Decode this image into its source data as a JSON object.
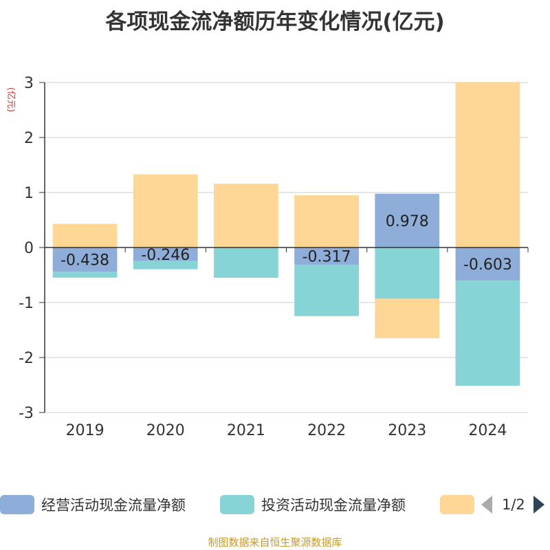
{
  "title": "各项现金流净额历年变化情况(亿元)",
  "footer": "制图数据来自恒生聚源数据库",
  "chart_data": {
    "type": "bar",
    "stacked": true,
    "categories": [
      "2019",
      "2020",
      "2021",
      "2022",
      "2023",
      "2024"
    ],
    "ylabel": "(亿元)",
    "ylim": [
      -3,
      3
    ],
    "yticks": [
      3,
      2,
      1,
      0,
      -1,
      -2,
      -3
    ],
    "grid": true,
    "series": [
      {
        "name": "经营活动现金流量净额",
        "color": "#8eadd9",
        "values": [
          -0.438,
          -0.246,
          0.01,
          -0.317,
          0.978,
          -0.603
        ],
        "labels": [
          "-0.438",
          "-0.246",
          "",
          "-0.317",
          "0.978",
          "-0.603"
        ]
      },
      {
        "name": "投资活动现金流量净额",
        "color": "#86d4d6",
        "values": [
          -0.11,
          -0.15,
          -0.55,
          -0.93,
          -0.93,
          -1.91
        ]
      },
      {
        "name": "",
        "color": "#fed695",
        "values": [
          0.43,
          1.33,
          1.15,
          0.95,
          -0.72,
          3.0
        ]
      }
    ],
    "legend_position": "bottom",
    "legend_page": "1/2"
  }
}
